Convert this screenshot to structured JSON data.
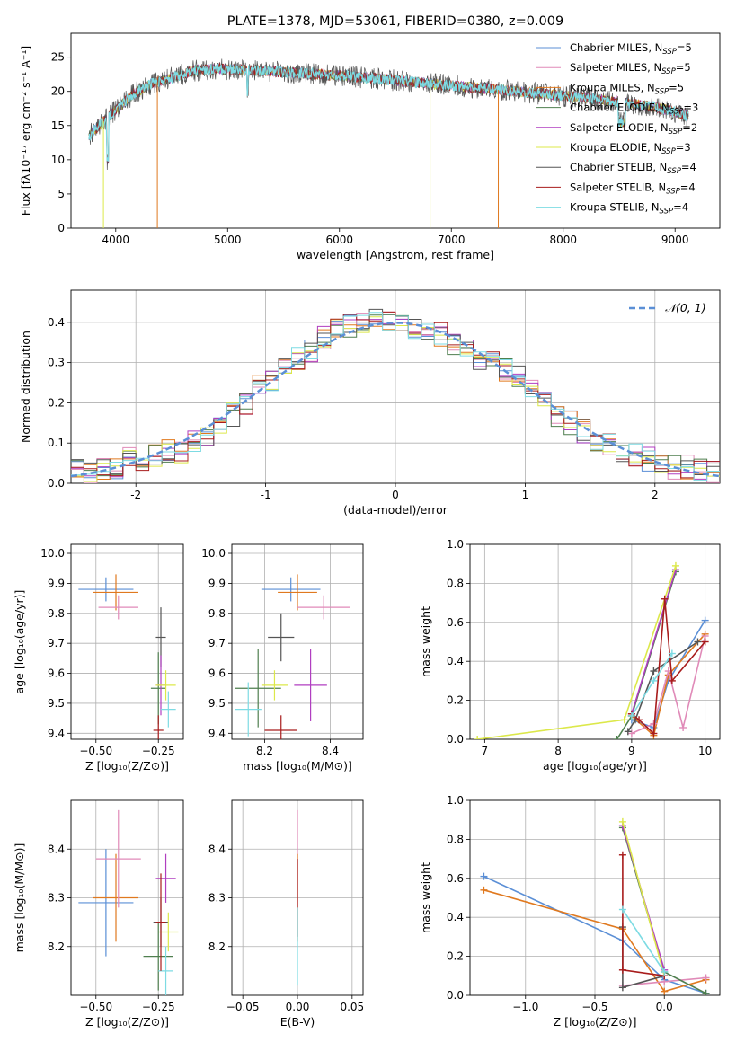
{
  "chart_data": [
    {
      "panel": "spectrum",
      "type": "line",
      "title": "PLATE=1378, MJD=53061, FIBERID=0380, z=0.009",
      "xlabel": "wavelength [Angstrom, rest frame]",
      "ylabel": "Flux [fλ10⁻¹⁷ erg cm⁻² s⁻¹ A⁻¹]",
      "xlim": [
        3600,
        9400
      ],
      "ylim": [
        0,
        28.5
      ],
      "x_ticks": [
        4000,
        5000,
        6000,
        7000,
        8000,
        9000
      ],
      "y_ticks": [
        0,
        5,
        10,
        15,
        20,
        25
      ],
      "grid": false,
      "legend": "top-right",
      "series": [
        {
          "name": "Chabrier MILES, N_SSP=5",
          "color": "#5b8fd6"
        },
        {
          "name": "Salpeter MILES, N_SSP=5",
          "color": "#e08ab8"
        },
        {
          "name": "Kroupa MILES, N_SSP=5",
          "color": "#e0791f"
        },
        {
          "name": "Chabrier ELODIE, N_SSP=3",
          "color": "#4f7f4f"
        },
        {
          "name": "Salpeter ELODIE, N_SSP=2",
          "color": "#b03ec0"
        },
        {
          "name": "Kroupa ELODIE, N_SSP=3",
          "color": "#dce84a"
        },
        {
          "name": "Chabrier STELIB, N_SSP=4",
          "color": "#555555"
        },
        {
          "name": "Salpeter STELIB, N_SSP=4",
          "color": "#a81c1c"
        },
        {
          "name": "Kroupa STELIB, N_SSP=4",
          "color": "#7ddbe3"
        }
      ],
      "continuum": {
        "x": [
          3760,
          3850,
          3950,
          4050,
          4150,
          4300,
          4500,
          4700,
          4900,
          5100,
          5300,
          5500,
          5700,
          5900,
          6100,
          6300,
          6500,
          6700,
          6900,
          7100,
          7300,
          7500,
          7700,
          7900,
          8100,
          8300,
          8500,
          8700,
          8900,
          9100
        ],
        "y": [
          13.5,
          15,
          16.5,
          18,
          19.5,
          21,
          22,
          23,
          23.3,
          23.2,
          23,
          22.8,
          22.6,
          22.4,
          22.2,
          21.9,
          21.6,
          21.3,
          21,
          20.7,
          20.4,
          20.1,
          19.8,
          19.5,
          19.2,
          18.9,
          18.5,
          18.0,
          17.4,
          16.5
        ]
      }
    },
    {
      "panel": "residuals",
      "type": "line",
      "xlabel": "(data-model)/error",
      "ylabel": "Normed distribution",
      "xlim": [
        -2.5,
        2.5
      ],
      "ylim": [
        0,
        0.48
      ],
      "x_ticks": [
        -2,
        -1,
        0,
        1,
        2
      ],
      "y_ticks": [
        0.0,
        0.1,
        0.2,
        0.3,
        0.4
      ],
      "grid": true,
      "legend": "top-right",
      "reference": {
        "name": "𝒩(0, 1)",
        "color": "#5b8fd6"
      },
      "bin_edges": [
        -2.5,
        -2.4,
        -2.3,
        -2.2,
        -2.1,
        -2.0,
        -1.9,
        -1.8,
        -1.7,
        -1.6,
        -1.5,
        -1.4,
        -1.3,
        -1.2,
        -1.1,
        -1.0,
        -0.9,
        -0.8,
        -0.7,
        -0.6,
        -0.5,
        -0.4,
        -0.3,
        -0.2,
        -0.1,
        0.0,
        0.1,
        0.2,
        0.3,
        0.4,
        0.5,
        0.6,
        0.7,
        0.8,
        0.9,
        1.0,
        1.1,
        1.2,
        1.3,
        1.4,
        1.5,
        1.6,
        1.7,
        1.8,
        1.9,
        2.0,
        2.1,
        2.2,
        2.3,
        2.4,
        2.5
      ],
      "histogram": [
        0.03,
        0.03,
        0.04,
        0.04,
        0.06,
        0.06,
        0.07,
        0.08,
        0.08,
        0.1,
        0.12,
        0.14,
        0.17,
        0.2,
        0.24,
        0.26,
        0.28,
        0.31,
        0.33,
        0.36,
        0.38,
        0.39,
        0.4,
        0.41,
        0.41,
        0.4,
        0.39,
        0.38,
        0.37,
        0.35,
        0.33,
        0.31,
        0.3,
        0.28,
        0.27,
        0.23,
        0.2,
        0.17,
        0.15,
        0.13,
        0.11,
        0.1,
        0.08,
        0.07,
        0.06,
        0.05,
        0.04,
        0.04,
        0.03,
        0.03
      ]
    },
    {
      "panel": "age-vs-Z",
      "type": "scatter",
      "xlabel": "Z [log₁₀(Z/Z⊙)]",
      "ylabel": "age  [log₁₀(age/yr)]",
      "xlim": [
        -0.6,
        -0.15
      ],
      "ylim": [
        9.38,
        10.03
      ],
      "x_ticks": [
        -0.5,
        -0.25
      ],
      "x_tick_labels": [
        "−0.50",
        "−0.25"
      ],
      "y_ticks": [
        9.4,
        9.5,
        9.6,
        9.7,
        9.8,
        9.9,
        10.0
      ],
      "grid": true,
      "points": [
        {
          "color": "#5b8fd6",
          "x": -0.46,
          "xerr": 0.11,
          "y": 9.88,
          "yerr": 0.04
        },
        {
          "color": "#e0791f",
          "x": -0.42,
          "xerr": 0.09,
          "y": 9.87,
          "yerr": 0.06
        },
        {
          "color": "#e08ab8",
          "x": -0.41,
          "xerr": 0.08,
          "y": 9.82,
          "yerr": 0.04
        },
        {
          "color": "#555555",
          "x": -0.24,
          "xerr": 0.02,
          "y": 9.72,
          "yerr": 0.1
        },
        {
          "color": "#4f7f4f",
          "x": -0.25,
          "xerr": 0.03,
          "y": 9.55,
          "yerr": 0.12
        },
        {
          "color": "#b03ec0",
          "x": -0.24,
          "xerr": 0.02,
          "y": 9.56,
          "yerr": 0.1
        },
        {
          "color": "#dce84a",
          "x": -0.22,
          "xerr": 0.04,
          "y": 9.56,
          "yerr": 0.05
        },
        {
          "color": "#7ddbe3",
          "x": -0.21,
          "xerr": 0.03,
          "y": 9.48,
          "yerr": 0.06
        },
        {
          "color": "#a81c1c",
          "x": -0.25,
          "xerr": 0.02,
          "y": 9.41,
          "yerr": 0.05
        }
      ]
    },
    {
      "panel": "age-vs-mass",
      "type": "scatter",
      "xlabel": "mass [log₁₀(M/M⊙)]",
      "xlim": [
        8.1,
        8.5
      ],
      "ylim": [
        9.38,
        10.03
      ],
      "x_ticks": [
        8.2,
        8.4
      ],
      "y_ticks": [
        9.4,
        9.5,
        9.6,
        9.7,
        9.8,
        9.9,
        10.0
      ],
      "grid": true,
      "points": [
        {
          "color": "#5b8fd6",
          "x": 8.28,
          "xerr": 0.09,
          "y": 9.88,
          "yerr": 0.04
        },
        {
          "color": "#e0791f",
          "x": 8.3,
          "xerr": 0.06,
          "y": 9.87,
          "yerr": 0.06
        },
        {
          "color": "#e08ab8",
          "x": 8.38,
          "xerr": 0.08,
          "y": 9.82,
          "yerr": 0.04
        },
        {
          "color": "#555555",
          "x": 8.25,
          "xerr": 0.04,
          "y": 9.72,
          "yerr": 0.08
        },
        {
          "color": "#4f7f4f",
          "x": 8.18,
          "xerr": 0.07,
          "y": 9.55,
          "yerr": 0.13
        },
        {
          "color": "#b03ec0",
          "x": 8.34,
          "xerr": 0.05,
          "y": 9.56,
          "yerr": 0.12
        },
        {
          "color": "#dce84a",
          "x": 8.23,
          "xerr": 0.04,
          "y": 9.56,
          "yerr": 0.05
        },
        {
          "color": "#7ddbe3",
          "x": 8.15,
          "xerr": 0.04,
          "y": 9.48,
          "yerr": 0.09
        },
        {
          "color": "#a81c1c",
          "x": 8.25,
          "xerr": 0.05,
          "y": 9.41,
          "yerr": 0.05
        }
      ]
    },
    {
      "panel": "mass-weight-vs-age",
      "type": "line",
      "xlabel": "age  [log₁₀(age/yr)]",
      "ylabel": "mass weight",
      "xlim": [
        6.8,
        10.2
      ],
      "ylim": [
        0,
        1.0
      ],
      "x_ticks": [
        7,
        8,
        9,
        10
      ],
      "y_ticks": [
        0.0,
        0.2,
        0.4,
        0.6,
        0.8,
        1.0
      ],
      "grid": true,
      "series": [
        {
          "color": "#5b8fd6",
          "x": [
            9.0,
            9.3,
            9.5,
            10.0
          ],
          "y": [
            0.1,
            0.06,
            0.3,
            0.61
          ]
        },
        {
          "color": "#e0791f",
          "x": [
            9.0,
            9.3,
            9.5,
            10.0
          ],
          "y": [
            0.12,
            0.02,
            0.33,
            0.54
          ]
        },
        {
          "color": "#e08ab8",
          "x": [
            9.0,
            9.3,
            9.5,
            9.7,
            10.0
          ],
          "y": [
            0.03,
            0.08,
            0.35,
            0.06,
            0.53
          ]
        },
        {
          "color": "#4f7f4f",
          "x": [
            8.8,
            9.0,
            9.6
          ],
          "y": [
            0.0,
            0.12,
            0.86
          ]
        },
        {
          "color": "#b03ec0",
          "x": [
            9.0,
            9.6
          ],
          "y": [
            0.13,
            0.87
          ]
        },
        {
          "color": "#dce84a",
          "x": [
            6.9,
            8.9,
            9.6
          ],
          "y": [
            0.0,
            0.1,
            0.89
          ]
        },
        {
          "color": "#555555",
          "x": [
            8.95,
            9.05,
            9.3,
            9.9
          ],
          "y": [
            0.04,
            0.1,
            0.35,
            0.5
          ]
        },
        {
          "color": "#a81c1c",
          "x": [
            9.0,
            9.1,
            9.3,
            9.45,
            9.55,
            10.0
          ],
          "y": [
            0.13,
            0.1,
            0.03,
            0.72,
            0.3,
            0.5
          ]
        },
        {
          "color": "#7ddbe3",
          "x": [
            9.0,
            9.3,
            9.55
          ],
          "y": [
            0.12,
            0.3,
            0.44
          ]
        }
      ]
    },
    {
      "panel": "mass-vs-Z",
      "type": "scatter",
      "xlabel": "Z [log₁₀(Z/Z⊙)]",
      "ylabel": "mass [log₁₀(M/M⊙)]",
      "xlim": [
        -0.6,
        -0.15
      ],
      "ylim": [
        8.1,
        8.5
      ],
      "x_ticks": [
        -0.5,
        -0.25
      ],
      "x_tick_labels": [
        "−0.50",
        "−0.25"
      ],
      "y_ticks": [
        8.2,
        8.3,
        8.4
      ],
      "grid": true,
      "points": [
        {
          "color": "#5b8fd6",
          "x": -0.46,
          "xerr": 0.11,
          "y": 8.29,
          "yerr": 0.11
        },
        {
          "color": "#e0791f",
          "x": -0.42,
          "xerr": 0.09,
          "y": 8.3,
          "yerr": 0.09
        },
        {
          "color": "#e08ab8",
          "x": -0.41,
          "xerr": 0.09,
          "y": 8.38,
          "yerr": 0.1
        },
        {
          "color": "#b03ec0",
          "x": -0.22,
          "xerr": 0.04,
          "y": 8.34,
          "yerr": 0.05
        },
        {
          "color": "#555555",
          "x": -0.24,
          "xerr": 0.03,
          "y": 8.25,
          "yerr": 0.05
        },
        {
          "color": "#dce84a",
          "x": -0.21,
          "xerr": 0.04,
          "y": 8.23,
          "yerr": 0.04
        },
        {
          "color": "#4f7f4f",
          "x": -0.25,
          "xerr": 0.06,
          "y": 8.18,
          "yerr": 0.07
        },
        {
          "color": "#7ddbe3",
          "x": -0.22,
          "xerr": 0.03,
          "y": 8.15,
          "yerr": 0.05
        },
        {
          "color": "#a81c1c",
          "x": -0.24,
          "xerr": 0.02,
          "y": 8.25,
          "yerr": 0.1
        }
      ]
    },
    {
      "panel": "mass-vs-EBV",
      "type": "scatter",
      "xlabel": "E(B-V)",
      "xlim": [
        -0.06,
        0.06
      ],
      "ylim": [
        8.1,
        8.5
      ],
      "x_ticks": [
        -0.05,
        0.0,
        0.05
      ],
      "x_tick_labels": [
        "−0.05",
        "0.00",
        "0.05"
      ],
      "y_ticks": [
        8.2,
        8.3,
        8.4
      ],
      "grid": true,
      "points": [
        {
          "color": "#e08ab8",
          "x": 0.0,
          "xerr": 0.0,
          "y": 8.38,
          "yerr": 0.1
        },
        {
          "color": "#e0791f",
          "x": 0.0,
          "xerr": 0.0,
          "y": 8.3,
          "yerr": 0.09
        },
        {
          "color": "#a81c1c",
          "x": 0.0,
          "xerr": 0.0,
          "y": 8.3,
          "yerr": 0.08
        },
        {
          "color": "#7ddbe3",
          "x": 0.0,
          "xerr": 0.0,
          "y": 8.2,
          "yerr": 0.08
        }
      ]
    },
    {
      "panel": "mass-weight-vs-Z",
      "type": "line",
      "xlabel": "Z [log₁₀(Z/Z⊙)]",
      "ylabel": "mass weight",
      "xlim": [
        -1.4,
        0.4
      ],
      "ylim": [
        0,
        1.0
      ],
      "x_ticks": [
        -1.0,
        -0.5,
        0.0
      ],
      "x_tick_labels": [
        "−1.0",
        "−0.5",
        "0.0"
      ],
      "y_ticks": [
        0.0,
        0.2,
        0.4,
        0.6,
        0.8,
        1.0
      ],
      "grid": true,
      "series": [
        {
          "color": "#5b8fd6",
          "x": [
            -1.3,
            -0.3,
            0.0,
            0.3
          ],
          "y": [
            0.61,
            0.28,
            0.08,
            0.01
          ]
        },
        {
          "color": "#e0791f",
          "x": [
            -1.3,
            -0.3,
            0.0,
            0.3
          ],
          "y": [
            0.54,
            0.34,
            0.02,
            0.08
          ]
        },
        {
          "color": "#e08ab8",
          "x": [
            -0.3,
            0.0,
            0.3
          ],
          "y": [
            0.05,
            0.07,
            0.09
          ]
        },
        {
          "color": "#4f7f4f",
          "x": [
            -0.3,
            0.0,
            0.3
          ],
          "y": [
            0.86,
            0.12,
            0.01
          ]
        },
        {
          "color": "#b03ec0",
          "x": [
            -0.3,
            0.0
          ],
          "y": [
            0.87,
            0.13
          ]
        },
        {
          "color": "#dce84a",
          "x": [
            -0.3,
            0.0
          ],
          "y": [
            0.89,
            0.1
          ]
        },
        {
          "color": "#555555",
          "x": [
            -0.3,
            -0.3,
            0.0
          ],
          "y": [
            0.35,
            0.04,
            0.1
          ]
        },
        {
          "color": "#a81c1c",
          "x": [
            -0.3,
            -0.3,
            0.0
          ],
          "y": [
            0.72,
            0.13,
            0.1
          ]
        },
        {
          "color": "#7ddbe3",
          "x": [
            -0.3,
            0.0
          ],
          "y": [
            0.44,
            0.12
          ]
        }
      ]
    }
  ]
}
